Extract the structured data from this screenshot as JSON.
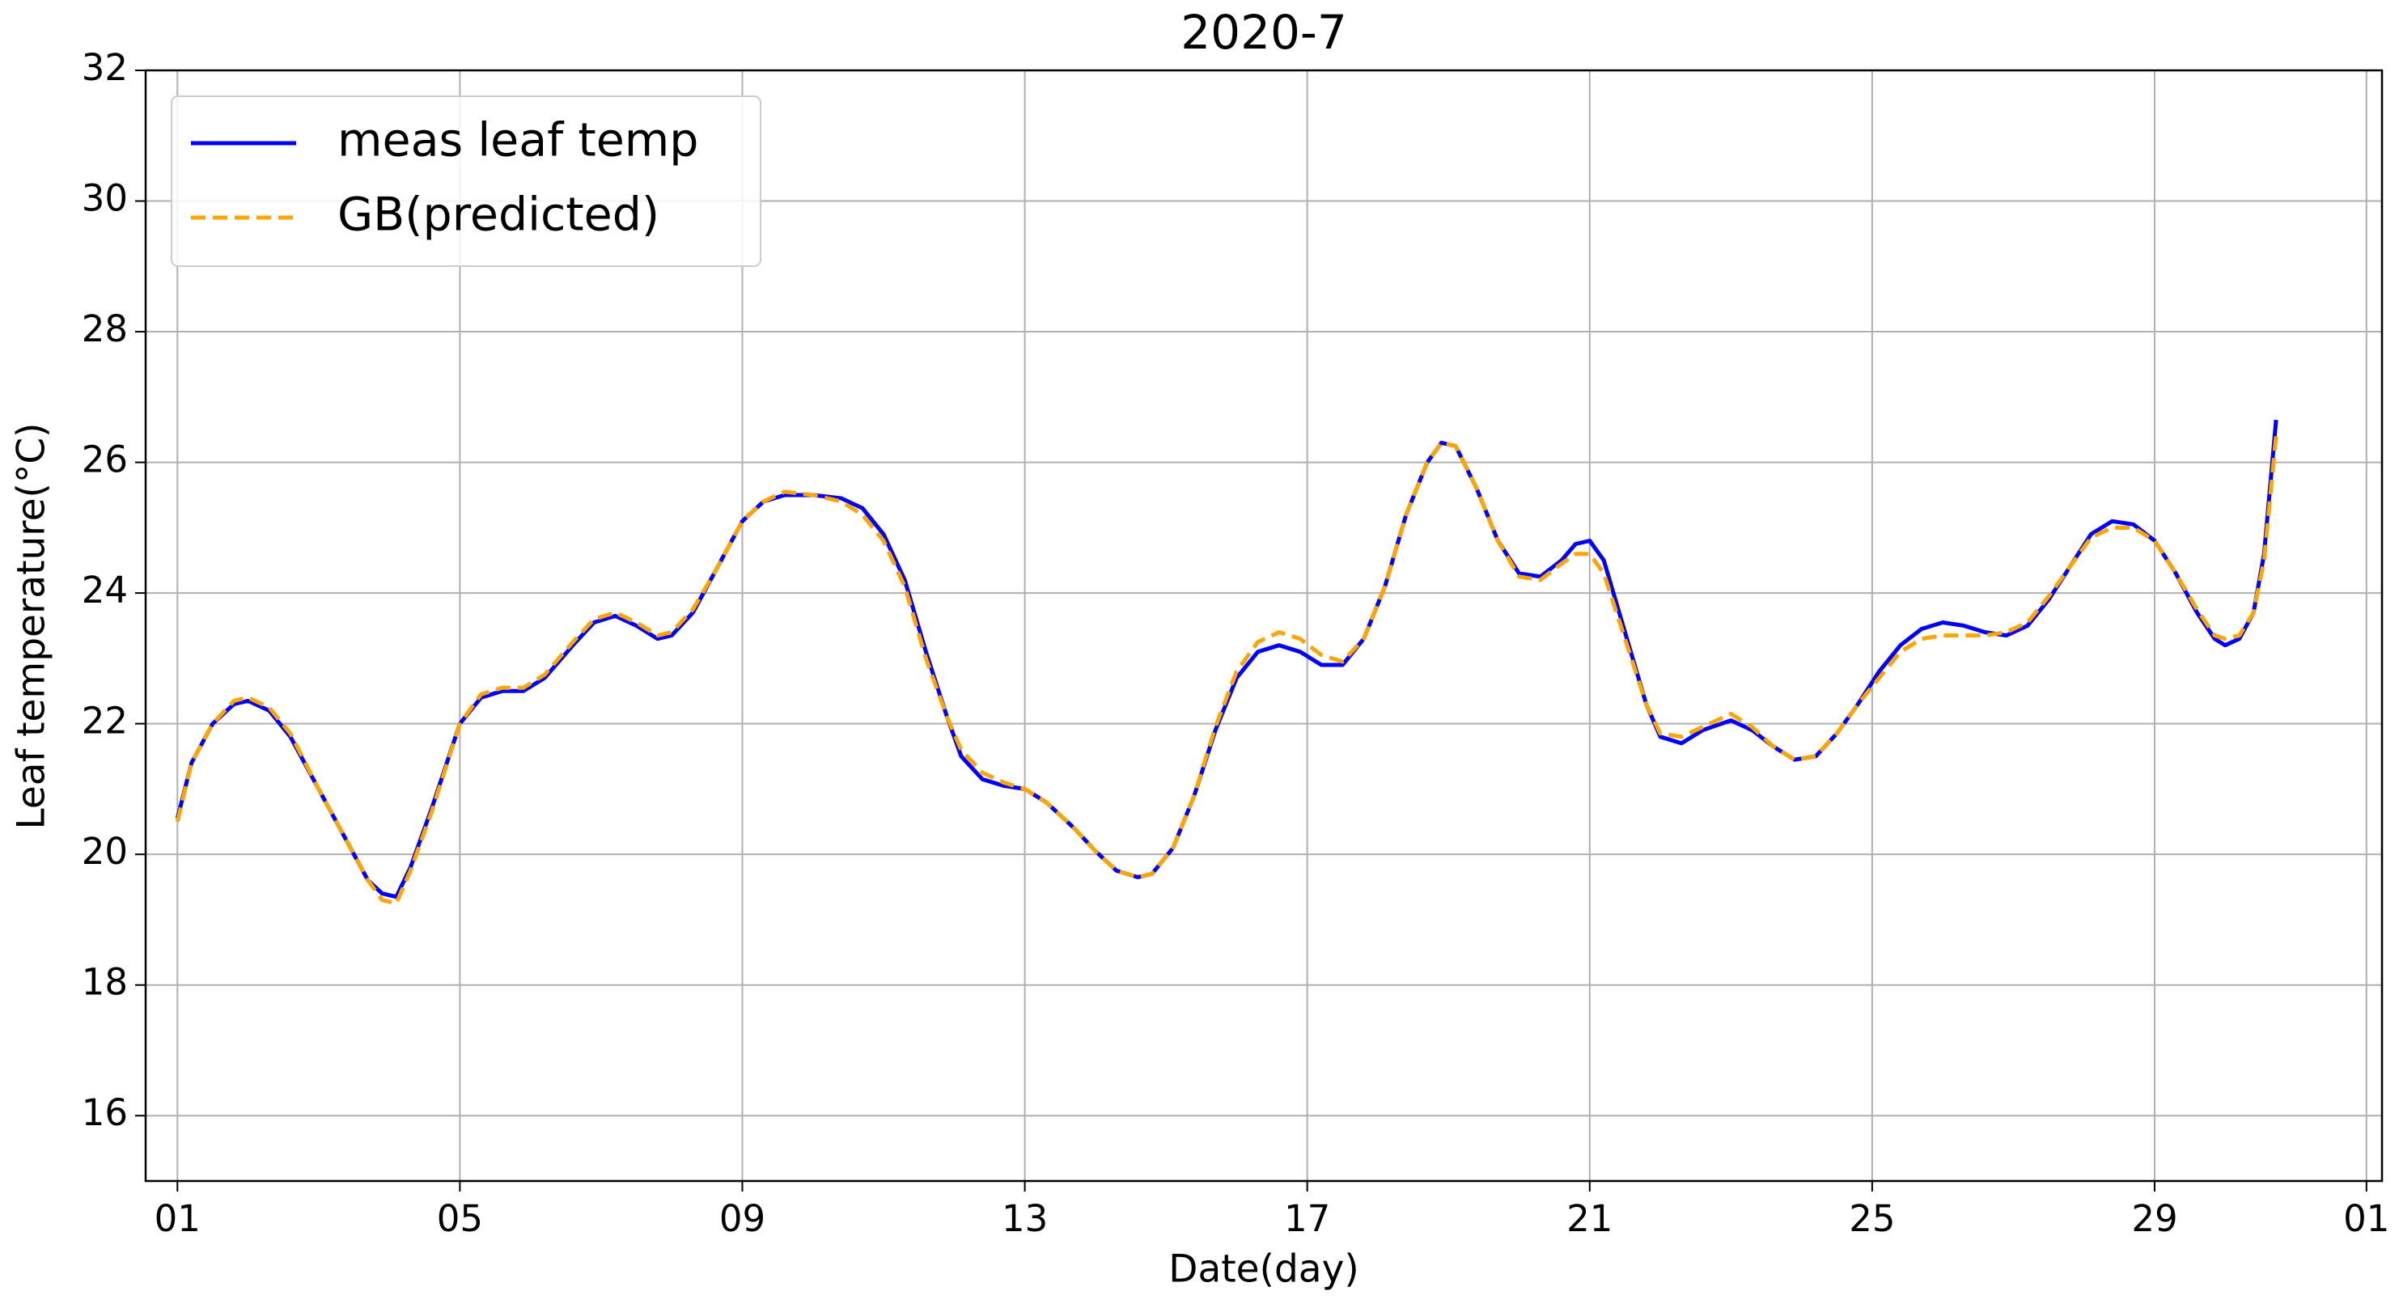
{
  "chart_data": {
    "type": "line",
    "title": "2020-7",
    "x_label": "Date(day)",
    "y_label": "Leaf temperature(°C)",
    "x": [
      1.0,
      1.2,
      1.5,
      1.8,
      2.0,
      2.3,
      2.6,
      3.0,
      3.4,
      3.7,
      3.9,
      4.1,
      4.3,
      4.6,
      5.0,
      5.3,
      5.6,
      5.9,
      6.2,
      6.6,
      6.9,
      7.2,
      7.5,
      7.8,
      8.0,
      8.3,
      8.6,
      9.0,
      9.3,
      9.6,
      10.0,
      10.4,
      10.7,
      11.0,
      11.3,
      11.6,
      11.9,
      12.1,
      12.4,
      12.7,
      13.0,
      13.3,
      13.7,
      14.0,
      14.3,
      14.6,
      14.8,
      15.1,
      15.4,
      15.7,
      16.0,
      16.3,
      16.6,
      16.9,
      17.2,
      17.5,
      17.8,
      18.1,
      18.4,
      18.7,
      18.9,
      19.1,
      19.4,
      19.7,
      20.0,
      20.3,
      20.6,
      20.8,
      21.0,
      21.2,
      21.5,
      21.8,
      22.0,
      22.3,
      22.6,
      23.0,
      23.3,
      23.6,
      23.9,
      24.2,
      24.5,
      24.8,
      25.1,
      25.4,
      25.7,
      26.0,
      26.3,
      26.6,
      26.9,
      27.2,
      27.5,
      27.8,
      28.1,
      28.4,
      28.7,
      29.0,
      29.3,
      29.6,
      29.85,
      30.0,
      30.2,
      30.4,
      30.55,
      30.72
    ],
    "series": [
      {
        "name": "meas leaf temp",
        "color": "#0000ff",
        "dash": false,
        "values": [
          20.55,
          21.4,
          22.0,
          22.3,
          22.35,
          22.2,
          21.8,
          21.0,
          20.2,
          19.6,
          19.4,
          19.35,
          19.8,
          20.7,
          22.0,
          22.4,
          22.5,
          22.5,
          22.7,
          23.2,
          23.55,
          23.65,
          23.5,
          23.3,
          23.35,
          23.7,
          24.3,
          25.1,
          25.4,
          25.5,
          25.5,
          25.45,
          25.3,
          24.9,
          24.2,
          23.1,
          22.1,
          21.5,
          21.15,
          21.05,
          21.0,
          20.8,
          20.4,
          20.05,
          19.75,
          19.65,
          19.7,
          20.1,
          20.9,
          21.9,
          22.7,
          23.1,
          23.2,
          23.1,
          22.9,
          22.9,
          23.3,
          24.1,
          25.2,
          26.0,
          26.3,
          26.25,
          25.6,
          24.8,
          24.3,
          24.25,
          24.5,
          24.75,
          24.8,
          24.5,
          23.4,
          22.3,
          21.8,
          21.7,
          21.9,
          22.05,
          21.9,
          21.65,
          21.45,
          21.5,
          21.85,
          22.3,
          22.8,
          23.2,
          23.45,
          23.55,
          23.5,
          23.4,
          23.35,
          23.5,
          23.9,
          24.4,
          24.9,
          25.1,
          25.05,
          24.8,
          24.3,
          23.7,
          23.3,
          23.2,
          23.3,
          23.7,
          24.6,
          26.65
        ]
      },
      {
        "name": "GB(predicted)",
        "color": "#ffa500",
        "dash": true,
        "values": [
          20.5,
          21.4,
          22.0,
          22.35,
          22.4,
          22.25,
          21.85,
          21.0,
          20.2,
          19.6,
          19.3,
          19.25,
          19.75,
          20.65,
          22.0,
          22.45,
          22.55,
          22.55,
          22.75,
          23.25,
          23.6,
          23.7,
          23.55,
          23.35,
          23.4,
          23.75,
          24.3,
          25.1,
          25.4,
          25.55,
          25.5,
          25.4,
          25.2,
          24.8,
          24.1,
          23.0,
          22.1,
          21.6,
          21.25,
          21.1,
          21.0,
          20.8,
          20.4,
          20.05,
          19.75,
          19.65,
          19.7,
          20.1,
          20.9,
          21.95,
          22.8,
          23.25,
          23.4,
          23.3,
          23.05,
          22.95,
          23.3,
          24.1,
          25.2,
          26.0,
          26.3,
          26.25,
          25.6,
          24.8,
          24.25,
          24.2,
          24.45,
          24.6,
          24.6,
          24.3,
          23.3,
          22.3,
          21.85,
          21.8,
          21.95,
          22.15,
          21.95,
          21.65,
          21.45,
          21.5,
          21.85,
          22.3,
          22.7,
          23.1,
          23.3,
          23.35,
          23.35,
          23.35,
          23.4,
          23.55,
          23.95,
          24.4,
          24.85,
          25.0,
          25.0,
          24.8,
          24.3,
          23.75,
          23.35,
          23.3,
          23.35,
          23.7,
          24.5,
          26.4
        ]
      }
    ],
    "xlim": [
      0.55,
      32.22
    ],
    "ylim": [
      15,
      32
    ],
    "xticks": [
      {
        "value": 1,
        "label": "01"
      },
      {
        "value": 5,
        "label": "05"
      },
      {
        "value": 9,
        "label": "09"
      },
      13,
      17,
      21,
      25,
      29,
      {
        "value": 32,
        "label": "01"
      }
    ],
    "yticks": [
      16,
      18,
      20,
      22,
      24,
      26,
      28,
      30,
      32
    ],
    "grid": true,
    "legend": "upper left"
  }
}
